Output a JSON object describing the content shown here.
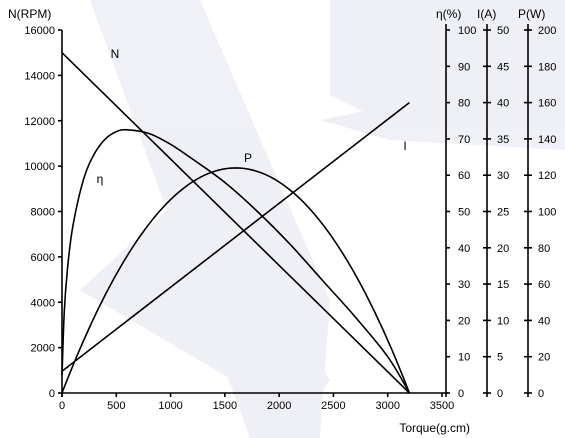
{
  "chart_data": {
    "type": "line",
    "title": "",
    "xlabel": "Torque(g.cm)",
    "xlim": [
      0,
      3500
    ],
    "x_ticks": [
      "0",
      "500",
      "1000",
      "1500",
      "2000",
      "2500",
      "3000",
      "3500"
    ],
    "axes": [
      {
        "key": "N",
        "label": "N(RPM)",
        "range": [
          0,
          16000
        ],
        "ticks": [
          "0",
          "2000",
          "4000",
          "6000",
          "8000",
          "10000",
          "12000",
          "14000",
          "16000"
        ]
      },
      {
        "key": "eta",
        "label": "η(%)",
        "range": [
          0,
          100
        ],
        "ticks": [
          "0",
          "10",
          "20",
          "30",
          "40",
          "50",
          "60",
          "70",
          "80",
          "90",
          "100"
        ]
      },
      {
        "key": "I",
        "label": "I(A)",
        "range": [
          0,
          50
        ],
        "ticks": [
          "0",
          "5",
          "10",
          "15",
          "20",
          "25",
          "30",
          "35",
          "40",
          "45",
          "50"
        ]
      },
      {
        "key": "P",
        "label": "P(W)",
        "range": [
          0,
          200
        ],
        "ticks": [
          "0",
          "20",
          "40",
          "60",
          "80",
          "100",
          "120",
          "140",
          "160",
          "180",
          "200"
        ]
      }
    ],
    "series": [
      {
        "name": "N",
        "axis": "N",
        "kind": "line",
        "x": [
          0,
          3200
        ],
        "y": [
          15000,
          0
        ]
      },
      {
        "name": "I",
        "axis": "I",
        "kind": "line",
        "x": [
          0,
          3200
        ],
        "y": [
          3,
          40
        ]
      },
      {
        "name": "P",
        "axis": "P",
        "kind": "parabola",
        "x": [
          0,
          1600,
          3200
        ],
        "y": [
          0,
          124,
          0
        ]
      },
      {
        "name": "η",
        "axis": "eta",
        "kind": "efficiency",
        "x": [
          0,
          20,
          50,
          100,
          200,
          300,
          400,
          500,
          600,
          800,
          1000,
          1200,
          1500,
          1800,
          2100,
          2400,
          2700,
          3000,
          3200
        ],
        "y": [
          5,
          22,
          34,
          46,
          59,
          66,
          70,
          72,
          72.5,
          71.5,
          68.5,
          64.5,
          58,
          50,
          41,
          31,
          21,
          10,
          0
        ]
      }
    ]
  }
}
